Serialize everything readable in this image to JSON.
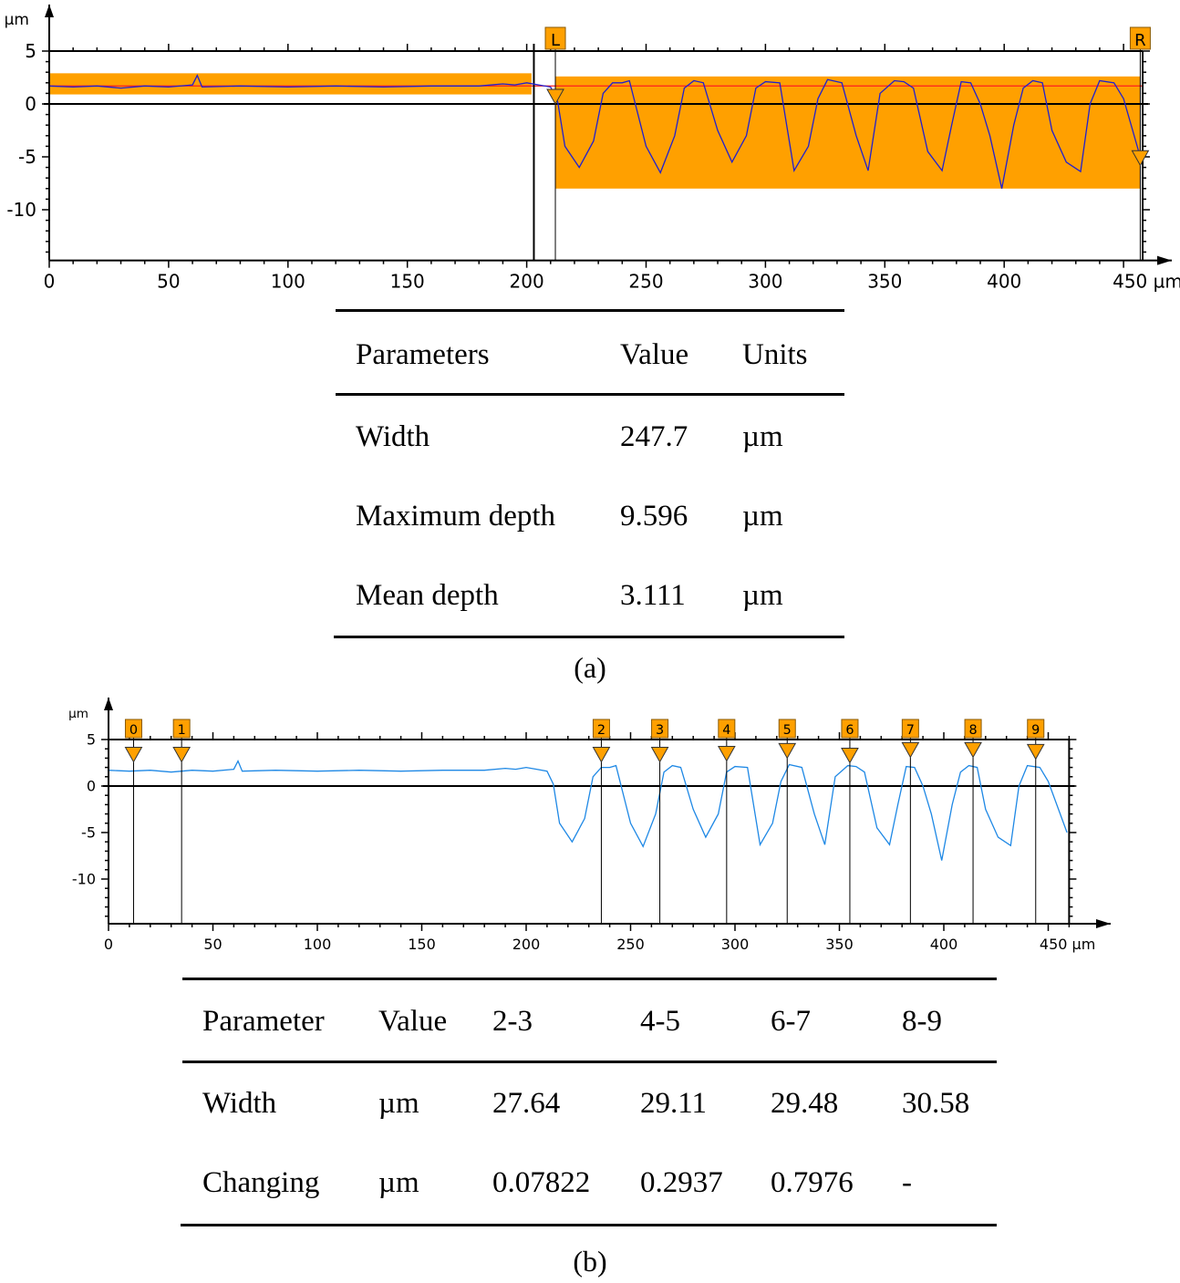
{
  "chart_data": [
    {
      "id": "a",
      "type": "line",
      "title": "",
      "xlabel": "µm",
      "ylabel": "µm",
      "xlim": [
        0,
        458
      ],
      "ylim": [
        -14.8,
        5
      ],
      "xticks": [
        0,
        50,
        100,
        150,
        200,
        250,
        300,
        350,
        400,
        450
      ],
      "xtick_labels": [
        "0",
        "50",
        "100",
        "150",
        "200",
        "250",
        "300",
        "350",
        "400",
        "450 µm"
      ],
      "yticks": [
        5,
        0,
        -5,
        -10
      ],
      "ytick_labels": [
        "5",
        "0",
        "-5",
        "-10"
      ],
      "reference_line_y": 1.7,
      "markers": [
        {
          "label": "L",
          "x": 212
        },
        {
          "label": "R",
          "x": 457
        }
      ],
      "cursor_line_x": 203,
      "shaded_bands": [
        {
          "x": [
            0,
            202
          ],
          "y": [
            0.9,
            2.9
          ],
          "color": "#FFA000"
        },
        {
          "x": [
            212,
            457
          ],
          "y": [
            -8.0,
            2.6
          ],
          "color": "#FFA000"
        }
      ],
      "series": [
        {
          "name": "profile",
          "color": "#2020D0",
          "x": [
            0,
            10,
            20,
            30,
            40,
            50,
            60,
            62,
            64,
            80,
            100,
            120,
            140,
            160,
            180,
            190,
            195,
            200,
            205,
            210,
            213,
            216,
            222,
            228,
            232,
            236,
            240,
            243,
            250,
            256,
            262,
            266,
            270,
            274,
            280,
            286,
            292,
            296,
            300,
            306,
            312,
            318,
            322,
            326,
            332,
            338,
            343,
            348,
            354,
            358,
            362,
            368,
            374,
            378,
            382,
            386,
            390,
            394,
            399,
            404,
            408,
            412,
            416,
            420,
            426,
            432,
            436,
            440,
            446,
            450,
            457
          ],
          "y": [
            1.7,
            1.6,
            1.7,
            1.5,
            1.7,
            1.6,
            1.8,
            2.7,
            1.6,
            1.7,
            1.6,
            1.7,
            1.6,
            1.7,
            1.7,
            1.9,
            1.8,
            2.0,
            1.8,
            1.6,
            0.2,
            -4.0,
            -6.0,
            -3.5,
            1.0,
            2.0,
            2.0,
            2.2,
            -4.0,
            -6.5,
            -3.0,
            1.5,
            2.2,
            2.0,
            -2.5,
            -5.5,
            -3.0,
            1.5,
            2.1,
            2.0,
            -6.3,
            -4.0,
            0.5,
            2.3,
            2.0,
            -3.0,
            -6.3,
            1.0,
            2.2,
            2.1,
            1.5,
            -4.5,
            -6.3,
            -2.0,
            2.1,
            2.0,
            0.0,
            -3.0,
            -8.0,
            -2.0,
            1.5,
            2.2,
            2.0,
            -2.5,
            -5.5,
            -6.4,
            0.0,
            2.2,
            2.0,
            0.5,
            -5.0
          ]
        }
      ]
    },
    {
      "id": "b",
      "type": "line",
      "title": "",
      "xlabel": "µm",
      "ylabel": "µm",
      "xlim": [
        0,
        460
      ],
      "ylim": [
        -14.8,
        5
      ],
      "xticks": [
        0,
        50,
        100,
        150,
        200,
        250,
        300,
        350,
        400,
        450
      ],
      "xtick_labels": [
        "0",
        "50",
        "100",
        "150",
        "200",
        "250",
        "300",
        "350",
        "400",
        "450 µm"
      ],
      "yticks": [
        5,
        0,
        -5,
        -10
      ],
      "ytick_labels": [
        "5",
        "0",
        "-5",
        "-10"
      ],
      "markers": [
        {
          "label": "0",
          "x": 12,
          "y": 2.6
        },
        {
          "label": "1",
          "x": 35,
          "y": 2.6
        },
        {
          "label": "2",
          "x": 236,
          "y": 2.6
        },
        {
          "label": "3",
          "x": 264,
          "y": 2.6
        },
        {
          "label": "4",
          "x": 296,
          "y": 2.7
        },
        {
          "label": "5",
          "x": 325,
          "y": 3.0
        },
        {
          "label": "6",
          "x": 355,
          "y": 2.5
        },
        {
          "label": "7",
          "x": 384,
          "y": 3.1
        },
        {
          "label": "8",
          "x": 414,
          "y": 3.1
        },
        {
          "label": "9",
          "x": 444,
          "y": 2.9
        }
      ],
      "series": [
        {
          "name": "profile",
          "color": "#1E88E5",
          "x": [
            0,
            10,
            20,
            30,
            40,
            50,
            60,
            62,
            64,
            80,
            100,
            120,
            140,
            160,
            180,
            190,
            195,
            200,
            205,
            210,
            213,
            216,
            222,
            228,
            232,
            236,
            240,
            243,
            250,
            256,
            262,
            266,
            270,
            274,
            280,
            286,
            292,
            296,
            300,
            306,
            312,
            318,
            322,
            326,
            332,
            338,
            343,
            348,
            354,
            358,
            362,
            368,
            374,
            378,
            382,
            386,
            390,
            394,
            399,
            404,
            408,
            412,
            416,
            420,
            426,
            432,
            436,
            440,
            446,
            450,
            459
          ],
          "y": [
            1.7,
            1.6,
            1.7,
            1.5,
            1.7,
            1.6,
            1.8,
            2.7,
            1.6,
            1.7,
            1.6,
            1.7,
            1.6,
            1.7,
            1.7,
            1.9,
            1.8,
            2.0,
            1.8,
            1.6,
            0.2,
            -4.0,
            -6.0,
            -3.5,
            1.0,
            2.0,
            2.0,
            2.2,
            -4.0,
            -6.5,
            -3.0,
            1.5,
            2.2,
            2.0,
            -2.5,
            -5.5,
            -3.0,
            1.5,
            2.1,
            2.0,
            -6.3,
            -4.0,
            0.5,
            2.3,
            2.0,
            -3.0,
            -6.3,
            1.0,
            2.2,
            2.1,
            1.5,
            -4.5,
            -6.3,
            -2.0,
            2.1,
            2.0,
            0.0,
            -3.0,
            -8.0,
            -2.0,
            1.5,
            2.2,
            2.0,
            -2.5,
            -5.5,
            -6.4,
            0.0,
            2.2,
            2.0,
            0.5,
            -5.0
          ]
        }
      ]
    }
  ],
  "table_a": {
    "headers": [
      "Parameters",
      "Value",
      "Units"
    ],
    "rows": [
      [
        "Width",
        "247.7",
        "µm"
      ],
      [
        "Maximum depth",
        "9.596",
        "µm"
      ],
      [
        "Mean depth",
        "3.111",
        "µm"
      ]
    ],
    "caption": "(a)"
  },
  "table_b": {
    "headers": [
      "Parameter",
      "Value",
      "2-3",
      "4-5",
      "6-7",
      "8-9"
    ],
    "rows": [
      [
        "Width",
        "µm",
        "27.64",
        "29.11",
        "29.48",
        "30.58"
      ],
      [
        "Changing",
        "µm",
        "0.07822",
        "0.2937",
        "0.7976",
        "-"
      ]
    ],
    "caption": "(b)"
  },
  "colors": {
    "band": "#FFA000",
    "marker": "#FFA000",
    "profile_a": "#2020D0",
    "profile_b": "#1E88E5",
    "reference": "#FF2020",
    "axis": "#000000"
  }
}
